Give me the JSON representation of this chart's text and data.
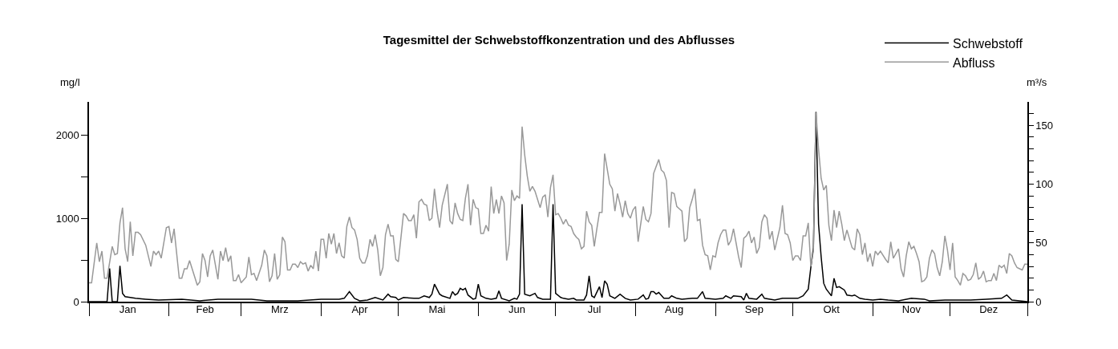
{
  "chart_data": {
    "type": "line",
    "title": "Tagesmittel der Schwebstoffkonzentration und des Abflusses",
    "ylabel": "mg/l",
    "y2label": "m³/s",
    "xlim": [
      "--01-01",
      "--12-31"
    ],
    "xticks": [
      {
        "value": "--01-01",
        "label": null
      },
      {
        "value": "--01-16",
        "label": "Jan"
      },
      {
        "value": "--02-01",
        "label": null
      },
      {
        "value": "--02-15",
        "label": "Feb"
      },
      {
        "value": "--03-01",
        "label": null
      },
      {
        "value": "--03-16",
        "label": "Mrz"
      },
      {
        "value": "--04-01",
        "label": null
      },
      {
        "value": "--04-16",
        "label": "Apr"
      },
      {
        "value": "--05-01",
        "label": null
      },
      {
        "value": "--05-16",
        "label": "Mai"
      },
      {
        "value": "--06-01",
        "label": null
      },
      {
        "value": "--06-16",
        "label": "Jun"
      },
      {
        "value": "--07-01",
        "label": null
      },
      {
        "value": "--07-16",
        "label": "Jul"
      },
      {
        "value": "--08-01",
        "label": null
      },
      {
        "value": "--08-16",
        "label": "Aug"
      },
      {
        "value": "--09-01",
        "label": null
      },
      {
        "value": "--09-16",
        "label": "Sep"
      },
      {
        "value": "--10-01",
        "label": null
      },
      {
        "value": "--10-16",
        "label": "Okt"
      },
      {
        "value": "--11-01",
        "label": null
      },
      {
        "value": "--11-16",
        "label": "Nov"
      },
      {
        "value": "--12-01",
        "label": null
      },
      {
        "value": "--12-16",
        "label": "Dez"
      },
      {
        "value": "--12-31",
        "label": null
      }
    ],
    "ylim": [
      0,
      2400
    ],
    "yticks": [
      0,
      {
        "value": 500,
        "label": null
      },
      1000,
      {
        "value": 1500,
        "label": null
      },
      2000
    ],
    "y2lim": [
      0,
      170
    ],
    "y2ticks": [
      0,
      {
        "value": 10,
        "label": null
      },
      {
        "value": 20,
        "label": null
      },
      {
        "value": 30,
        "label": null
      },
      {
        "value": 40,
        "label": null
      },
      50,
      {
        "value": 60,
        "label": null
      },
      {
        "value": 70,
        "label": null
      },
      {
        "value": 80,
        "label": null
      },
      {
        "value": 90,
        "label": null
      },
      100,
      {
        "value": 110,
        "label": null
      },
      {
        "value": 120,
        "label": null
      },
      {
        "value": 130,
        "label": null
      },
      {
        "value": 140,
        "label": null
      },
      150,
      {
        "value": 160,
        "label": null
      }
    ],
    "grid": false,
    "legend": "top right",
    "marker": "none",
    "line_style": "solid",
    "series": [
      {
        "name": "Schwebstoff",
        "color": "#000000",
        "x": [
          "--01-01",
          "--01-08",
          "--01-09",
          "--01-10",
          "--01-12",
          "--01-13",
          "--01-14",
          "--01-15",
          "--01-17",
          "--01-19",
          "--01-23",
          "--01-28",
          "--02-06",
          "--02-13",
          "--02-20",
          "--02-26",
          "--03-01",
          "--03-05",
          "--03-11",
          "--03-23",
          "--04-01",
          "--04-08",
          "--04-10",
          "--04-12",
          "--04-14",
          "--04-16",
          "--04-19",
          "--04-22",
          "--04-25",
          "--04-27",
          "--04-28",
          "--04-30",
          "--05-01",
          "--05-03",
          "--05-07",
          "--05-09",
          "--05-11",
          "--05-13",
          "--05-14",
          "--05-15",
          "--05-17",
          "--05-18",
          "--05-21",
          "--05-22",
          "--05-23",
          "--05-24",
          "--05-25",
          "--05-26",
          "--05-27",
          "--05-28",
          "--05-30",
          "--05-31",
          "--06-01",
          "--06-02",
          "--06-04",
          "--06-06",
          "--06-08",
          "--06-09",
          "--06-10",
          "--06-13",
          "--06-15",
          "--06-16",
          "--06-17",
          "--06-18",
          "--06-19",
          "--06-21",
          "--06-23",
          "--06-24",
          "--06-26",
          "--06-29",
          "--06-30",
          "--07-01",
          "--07-03",
          "--07-04",
          "--07-06",
          "--07-08",
          "--07-09",
          "--07-12",
          "--07-13",
          "--07-14",
          "--07-15",
          "--07-16",
          "--07-18",
          "--07-19",
          "--07-20",
          "--07-21",
          "--07-22",
          "--07-24",
          "--07-26",
          "--07-28",
          "--07-30",
          "--08-02",
          "--08-04",
          "--08-05",
          "--08-06",
          "--08-07",
          "--08-08",
          "--08-09",
          "--08-10",
          "--08-12",
          "--08-14",
          "--08-15",
          "--08-17",
          "--08-19",
          "--08-23",
          "--08-25",
          "--08-27",
          "--08-28",
          "--09-01",
          "--09-04",
          "--09-05",
          "--09-07",
          "--09-08",
          "--09-11",
          "--09-12",
          "--09-13",
          "--09-14",
          "--09-17",
          "--09-19",
          "--09-20",
          "--09-24",
          "--09-27",
          "--09-30",
          "--10-03",
          "--10-05",
          "--10-07",
          "--10-08",
          "--10-09",
          "--10-10",
          "--10-11",
          "--10-12",
          "--10-13",
          "--10-14",
          "--10-15",
          "--10-16",
          "--10-17",
          "--10-18",
          "--10-19",
          "--10-21",
          "--10-22",
          "--10-24",
          "--10-25",
          "--10-27",
          "--10-29",
          "--11-01",
          "--11-04",
          "--11-07",
          "--11-11",
          "--11-16",
          "--11-21",
          "--11-23",
          "--11-29",
          "--12-05",
          "--12-09",
          "--12-15",
          "--12-21",
          "--12-23",
          "--12-25",
          "--12-28",
          "--12-31"
        ],
        "values": [
          0,
          0,
          400,
          0,
          0,
          430,
          100,
          60,
          50,
          40,
          30,
          20,
          30,
          10,
          30,
          30,
          30,
          30,
          10,
          10,
          30,
          30,
          40,
          120,
          40,
          10,
          20,
          50,
          20,
          90,
          60,
          50,
          20,
          50,
          40,
          40,
          70,
          50,
          90,
          210,
          90,
          70,
          40,
          120,
          80,
          100,
          160,
          140,
          160,
          80,
          30,
          40,
          210,
          70,
          40,
          30,
          40,
          130,
          40,
          10,
          40,
          30,
          90,
          1170,
          90,
          70,
          100,
          50,
          30,
          30,
          1170,
          100,
          50,
          40,
          30,
          40,
          20,
          20,
          80,
          310,
          70,
          50,
          180,
          50,
          250,
          210,
          70,
          40,
          90,
          40,
          20,
          30,
          80,
          30,
          40,
          120,
          120,
          90,
          110,
          40,
          40,
          70,
          40,
          30,
          40,
          40,
          120,
          40,
          30,
          40,
          70,
          40,
          70,
          60,
          20,
          100,
          40,
          30,
          90,
          40,
          20,
          40,
          40,
          40,
          70,
          150,
          410,
          650,
          2280,
          930,
          540,
          220,
          150,
          110,
          70,
          280,
          170,
          180,
          140,
          80,
          70,
          80,
          40,
          30,
          20,
          30,
          20,
          10,
          40,
          30,
          10,
          20,
          20,
          20,
          30,
          40,
          80,
          20,
          10,
          0
        ]
      },
      {
        "name": "Abfluss",
        "color": "#999999",
        "axis": "y2",
        "x": [
          "--01-01",
          "--01-02",
          "--01-04",
          "--01-05",
          "--01-06",
          "--01-07",
          "--01-08",
          "--01-10",
          "--01-11",
          "--01-12",
          "--01-13",
          "--01-14",
          "--01-15",
          "--01-16",
          "--01-17",
          "--01-18",
          "--01-19",
          "--01-20",
          "--01-21",
          "--01-23",
          "--01-25",
          "--01-26",
          "--01-27",
          "--01-28",
          "--01-29",
          "--01-31",
          "--02-01",
          "--02-02",
          "--02-03",
          "--02-05",
          "--02-06",
          "--02-07",
          "--02-08",
          "--02-09",
          "--02-12",
          "--02-13",
          "--02-14",
          "--02-15",
          "--02-16",
          "--02-17",
          "--02-18",
          "--02-20",
          "--02-21",
          "--02-22",
          "--02-23",
          "--02-24",
          "--02-25",
          "--02-26",
          "--02-27",
          "--02-28",
          "--03-01",
          "--03-03",
          "--03-04",
          "--03-05",
          "--03-06",
          "--03-07",
          "--03-09",
          "--03-10",
          "--03-11",
          "--03-12",
          "--03-13",
          "--03-14",
          "--03-15",
          "--03-16",
          "--03-17",
          "--03-18",
          "--03-19",
          "--03-20",
          "--03-21",
          "--03-22",
          "--03-23",
          "--03-24",
          "--03-25",
          "--03-26",
          "--03-27",
          "--03-28",
          "--03-29",
          "--03-30",
          "--03-31",
          "--04-01",
          "--04-02",
          "--04-03",
          "--04-04",
          "--04-05",
          "--04-06",
          "--04-07",
          "--04-08",
          "--04-09",
          "--04-10",
          "--04-11",
          "--04-12",
          "--04-13",
          "--04-14",
          "--04-15",
          "--04-16",
          "--04-17",
          "--04-18",
          "--04-19",
          "--04-20",
          "--04-21",
          "--04-22",
          "--04-23",
          "--04-24",
          "--04-25",
          "--04-26",
          "--04-27",
          "--04-28",
          "--04-29",
          "--04-30",
          "--05-01",
          "--05-03",
          "--05-04",
          "--05-05",
          "--05-06",
          "--05-07",
          "--05-08",
          "--05-09",
          "--05-10",
          "--05-11",
          "--05-12",
          "--05-13",
          "--05-14",
          "--05-15",
          "--05-16",
          "--05-17",
          "--05-18",
          "--05-20",
          "--05-21",
          "--05-22",
          "--05-23",
          "--05-24",
          "--05-25",
          "--05-26",
          "--05-27",
          "--05-28",
          "--05-29",
          "--05-30",
          "--05-31",
          "--06-01",
          "--06-02",
          "--06-03",
          "--06-04",
          "--06-05",
          "--06-06",
          "--06-07",
          "--06-08",
          "--06-09",
          "--06-10",
          "--06-11",
          "--06-12",
          "--06-13",
          "--06-14",
          "--06-15",
          "--06-16",
          "--06-17",
          "--06-18",
          "--06-19",
          "--06-20",
          "--06-21",
          "--06-22",
          "--06-23",
          "--06-25",
          "--06-26",
          "--06-27",
          "--06-28",
          "--06-29",
          "--06-30",
          "--07-01",
          "--07-02",
          "--07-03",
          "--07-04",
          "--07-05",
          "--07-06",
          "--07-07",
          "--07-08",
          "--07-09",
          "--07-10",
          "--07-11",
          "--07-12",
          "--07-13",
          "--07-14",
          "--07-15",
          "--07-16",
          "--07-17",
          "--07-18",
          "--07-19",
          "--07-20",
          "--07-21",
          "--07-22",
          "--07-23",
          "--07-24",
          "--07-25",
          "--07-26",
          "--07-27",
          "--07-28",
          "--07-29",
          "--07-30",
          "--07-31",
          "--08-01",
          "--08-02",
          "--08-04",
          "--08-05",
          "--08-06",
          "--08-07",
          "--08-08",
          "--08-09",
          "--08-10",
          "--08-11",
          "--08-12",
          "--08-13",
          "--08-14",
          "--08-15",
          "--08-16",
          "--08-17",
          "--08-18",
          "--08-19",
          "--08-20",
          "--08-21",
          "--08-22",
          "--08-23",
          "--08-24",
          "--08-25",
          "--08-26",
          "--08-27",
          "--08-28",
          "--08-29",
          "--08-30",
          "--08-31",
          "--09-01",
          "--09-02",
          "--09-03",
          "--09-04",
          "--09-05",
          "--09-06",
          "--09-07",
          "--09-08",
          "--09-09",
          "--09-10",
          "--09-11",
          "--09-12",
          "--09-13",
          "--09-14",
          "--09-15",
          "--09-16",
          "--09-17",
          "--09-18",
          "--09-19",
          "--09-20",
          "--09-21",
          "--09-22",
          "--09-23",
          "--09-24",
          "--09-26",
          "--09-27",
          "--09-28",
          "--09-29",
          "--09-30",
          "--10-01",
          "--10-02",
          "--10-03",
          "--10-04",
          "--10-05",
          "--10-06",
          "--10-07",
          "--10-08",
          "--10-09",
          "--10-10",
          "--10-11",
          "--10-12",
          "--10-13",
          "--10-14",
          "--10-15",
          "--10-16",
          "--10-17",
          "--10-18",
          "--10-19",
          "--10-20",
          "--10-21",
          "--10-22",
          "--10-24",
          "--10-25",
          "--10-26",
          "--10-27",
          "--10-28",
          "--10-29",
          "--10-30",
          "--10-31",
          "--11-01",
          "--11-02",
          "--11-03",
          "--11-04",
          "--11-06",
          "--11-07",
          "--11-08",
          "--11-09",
          "--11-11",
          "--11-12",
          "--11-13",
          "--11-14",
          "--11-15",
          "--11-16",
          "--11-17",
          "--11-18",
          "--11-19",
          "--11-20",
          "--11-21",
          "--11-22",
          "--11-23",
          "--11-24",
          "--11-25",
          "--11-26",
          "--11-27",
          "--11-28",
          "--11-29",
          "--11-30",
          "--12-01",
          "--12-02",
          "--12-03",
          "--12-04",
          "--12-05",
          "--12-06",
          "--12-07",
          "--12-08",
          "--12-09",
          "--12-10",
          "--12-11",
          "--12-12",
          "--12-13",
          "--12-14",
          "--12-15",
          "--12-16",
          "--12-17",
          "--12-18",
          "--12-19",
          "--12-20",
          "--12-21",
          "--12-22",
          "--12-23",
          "--12-24",
          "--12-25",
          "--12-26",
          "--12-27",
          "--12-28",
          "--12-29",
          "--12-30",
          "--12-31"
        ],
        "values": [
          16,
          16,
          50,
          34,
          43,
          20,
          20,
          47,
          40,
          41,
          67,
          80,
          45,
          34,
          68,
          39,
          59,
          59,
          57,
          48,
          30,
          43,
          40,
          43,
          37,
          63,
          64,
          50,
          62,
          20,
          20,
          28,
          28,
          35,
          14,
          17,
          41,
          35,
          21,
          39,
          44,
          19,
          43,
          35,
          46,
          34,
          39,
          18,
          18,
          23,
          16,
          21,
          38,
          23,
          24,
          18,
          31,
          44,
          39,
          17,
          22,
          41,
          19,
          23,
          55,
          51,
          27,
          27,
          32,
          32,
          29,
          34,
          32,
          33,
          26,
          31,
          28,
          43,
          26,
          53,
          53,
          37,
          58,
          49,
          58,
          41,
          50,
          39,
          37,
          64,
          72,
          63,
          61,
          53,
          37,
          33,
          33,
          39,
          53,
          47,
          57,
          44,
          22,
          29,
          57,
          66,
          56,
          56,
          36,
          34,
          75,
          73,
          69,
          69,
          74,
          54,
          85,
          87,
          83,
          82,
          69,
          71,
          96,
          77,
          63,
          82,
          100,
          69,
          66,
          84,
          75,
          70,
          69,
          88,
          100,
          65,
          87,
          80,
          79,
          58,
          58,
          65,
          60,
          98,
          75,
          87,
          75,
          90,
          84,
          35,
          49,
          95,
          86,
          90,
          88,
          149,
          125,
          107,
          94,
          98,
          94,
          80,
          89,
          91,
          72,
          97,
          108,
          74,
          75,
          71,
          66,
          70,
          65,
          64,
          58,
          55,
          53,
          45,
          47,
          77,
          68,
          65,
          47,
          62,
          76,
          76,
          126,
          113,
          100,
          96,
          77,
          92,
          83,
          72,
          86,
          75,
          71,
          78,
          81,
          51,
          81,
          70,
          68,
          75,
          109,
          115,
          121,
          112,
          110,
          103,
          63,
          93,
          92,
          81,
          79,
          77,
          51,
          54,
          80,
          87,
          96,
          69,
          70,
          48,
          40,
          39,
          27,
          39,
          38,
          50,
          57,
          61,
          61,
          48,
          52,
          62,
          50,
          38,
          29,
          54,
          56,
          60,
          50,
          55,
          41,
          46,
          68,
          74,
          71,
          53,
          60,
          44,
          63,
          82,
          58,
          57,
          50,
          35,
          39,
          39,
          35,
          56,
          56,
          67,
          30,
          43,
          161,
          130,
          105,
          95,
          99,
          65,
          52,
          78,
          63,
          77,
          66,
          52,
          61,
          46,
          44,
          62,
          57,
          40,
          50,
          34,
          41,
          30,
          43,
          40,
          43,
          36,
          33,
          51,
          37,
          45,
          28,
          21,
          39,
          51,
          45,
          47,
          41,
          34,
          17,
          18,
          21,
          37,
          44,
          41,
          29,
          22,
          34,
          56,
          44,
          27,
          50,
          21,
          18,
          14,
          24,
          22,
          18,
          19,
          23,
          33,
          19,
          21,
          26,
          17,
          18,
          18,
          24,
          18,
          31,
          29,
          31,
          24,
          41,
          39,
          33,
          29,
          28,
          27,
          32,
          32
        ]
      }
    ]
  }
}
